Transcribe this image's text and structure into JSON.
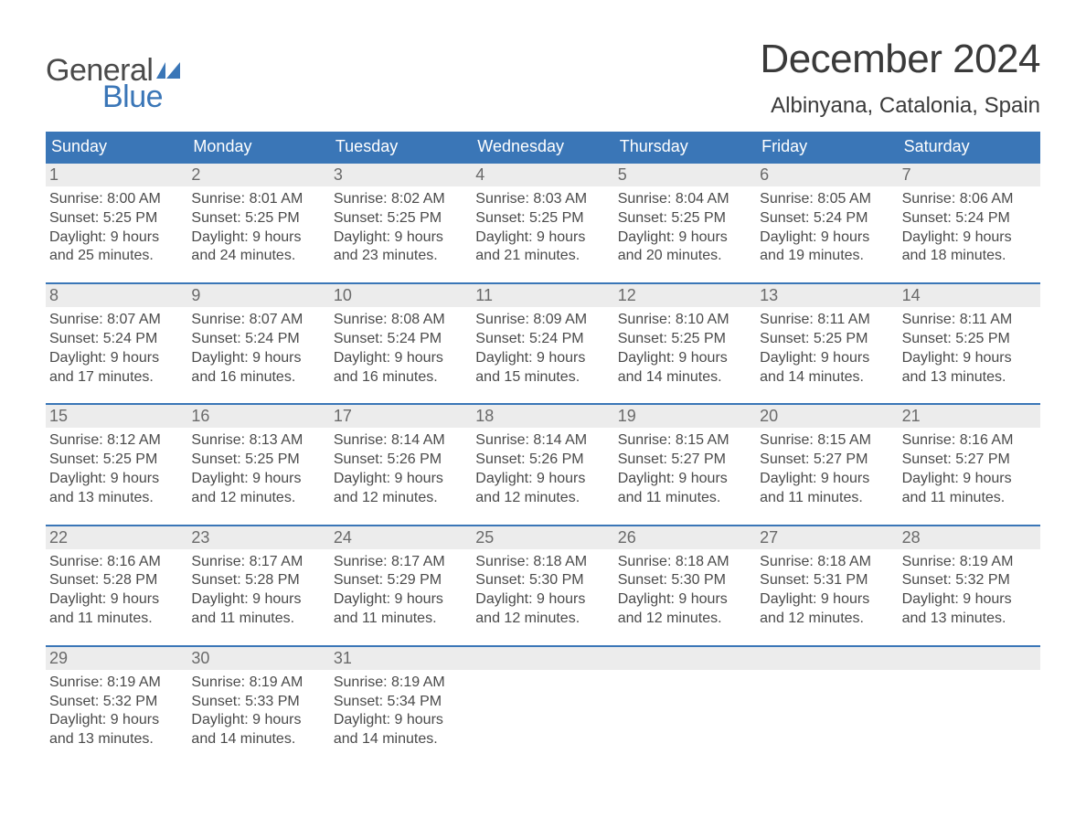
{
  "logo": {
    "text_general": "General",
    "text_blue": "Blue",
    "flag_color": "#3a76b7"
  },
  "title": "December 2024",
  "location": "Albinyana, Catalonia, Spain",
  "colors": {
    "header_bg": "#3a76b7",
    "header_text": "#ffffff",
    "daynum_bg": "#ececec",
    "daynum_text": "#6a6a6a",
    "body_text": "#4a4a4a",
    "week_border": "#3a76b7",
    "background": "#ffffff"
  },
  "typography": {
    "title_fontsize": 44,
    "location_fontsize": 24,
    "weekday_fontsize": 18,
    "daynum_fontsize": 18,
    "cell_fontsize": 16,
    "logo_fontsize": 34
  },
  "weekdays": [
    "Sunday",
    "Monday",
    "Tuesday",
    "Wednesday",
    "Thursday",
    "Friday",
    "Saturday"
  ],
  "weeks": [
    [
      {
        "n": "1",
        "sunrise": "8:00 AM",
        "sunset": "5:25 PM",
        "dl1": "Daylight: 9 hours",
        "dl2": "and 25 minutes."
      },
      {
        "n": "2",
        "sunrise": "8:01 AM",
        "sunset": "5:25 PM",
        "dl1": "Daylight: 9 hours",
        "dl2": "and 24 minutes."
      },
      {
        "n": "3",
        "sunrise": "8:02 AM",
        "sunset": "5:25 PM",
        "dl1": "Daylight: 9 hours",
        "dl2": "and 23 minutes."
      },
      {
        "n": "4",
        "sunrise": "8:03 AM",
        "sunset": "5:25 PM",
        "dl1": "Daylight: 9 hours",
        "dl2": "and 21 minutes."
      },
      {
        "n": "5",
        "sunrise": "8:04 AM",
        "sunset": "5:25 PM",
        "dl1": "Daylight: 9 hours",
        "dl2": "and 20 minutes."
      },
      {
        "n": "6",
        "sunrise": "8:05 AM",
        "sunset": "5:24 PM",
        "dl1": "Daylight: 9 hours",
        "dl2": "and 19 minutes."
      },
      {
        "n": "7",
        "sunrise": "8:06 AM",
        "sunset": "5:24 PM",
        "dl1": "Daylight: 9 hours",
        "dl2": "and 18 minutes."
      }
    ],
    [
      {
        "n": "8",
        "sunrise": "8:07 AM",
        "sunset": "5:24 PM",
        "dl1": "Daylight: 9 hours",
        "dl2": "and 17 minutes."
      },
      {
        "n": "9",
        "sunrise": "8:07 AM",
        "sunset": "5:24 PM",
        "dl1": "Daylight: 9 hours",
        "dl2": "and 16 minutes."
      },
      {
        "n": "10",
        "sunrise": "8:08 AM",
        "sunset": "5:24 PM",
        "dl1": "Daylight: 9 hours",
        "dl2": "and 16 minutes."
      },
      {
        "n": "11",
        "sunrise": "8:09 AM",
        "sunset": "5:24 PM",
        "dl1": "Daylight: 9 hours",
        "dl2": "and 15 minutes."
      },
      {
        "n": "12",
        "sunrise": "8:10 AM",
        "sunset": "5:25 PM",
        "dl1": "Daylight: 9 hours",
        "dl2": "and 14 minutes."
      },
      {
        "n": "13",
        "sunrise": "8:11 AM",
        "sunset": "5:25 PM",
        "dl1": "Daylight: 9 hours",
        "dl2": "and 14 minutes."
      },
      {
        "n": "14",
        "sunrise": "8:11 AM",
        "sunset": "5:25 PM",
        "dl1": "Daylight: 9 hours",
        "dl2": "and 13 minutes."
      }
    ],
    [
      {
        "n": "15",
        "sunrise": "8:12 AM",
        "sunset": "5:25 PM",
        "dl1": "Daylight: 9 hours",
        "dl2": "and 13 minutes."
      },
      {
        "n": "16",
        "sunrise": "8:13 AM",
        "sunset": "5:25 PM",
        "dl1": "Daylight: 9 hours",
        "dl2": "and 12 minutes."
      },
      {
        "n": "17",
        "sunrise": "8:14 AM",
        "sunset": "5:26 PM",
        "dl1": "Daylight: 9 hours",
        "dl2": "and 12 minutes."
      },
      {
        "n": "18",
        "sunrise": "8:14 AM",
        "sunset": "5:26 PM",
        "dl1": "Daylight: 9 hours",
        "dl2": "and 12 minutes."
      },
      {
        "n": "19",
        "sunrise": "8:15 AM",
        "sunset": "5:27 PM",
        "dl1": "Daylight: 9 hours",
        "dl2": "and 11 minutes."
      },
      {
        "n": "20",
        "sunrise": "8:15 AM",
        "sunset": "5:27 PM",
        "dl1": "Daylight: 9 hours",
        "dl2": "and 11 minutes."
      },
      {
        "n": "21",
        "sunrise": "8:16 AM",
        "sunset": "5:27 PM",
        "dl1": "Daylight: 9 hours",
        "dl2": "and 11 minutes."
      }
    ],
    [
      {
        "n": "22",
        "sunrise": "8:16 AM",
        "sunset": "5:28 PM",
        "dl1": "Daylight: 9 hours",
        "dl2": "and 11 minutes."
      },
      {
        "n": "23",
        "sunrise": "8:17 AM",
        "sunset": "5:28 PM",
        "dl1": "Daylight: 9 hours",
        "dl2": "and 11 minutes."
      },
      {
        "n": "24",
        "sunrise": "8:17 AM",
        "sunset": "5:29 PM",
        "dl1": "Daylight: 9 hours",
        "dl2": "and 11 minutes."
      },
      {
        "n": "25",
        "sunrise": "8:18 AM",
        "sunset": "5:30 PM",
        "dl1": "Daylight: 9 hours",
        "dl2": "and 12 minutes."
      },
      {
        "n": "26",
        "sunrise": "8:18 AM",
        "sunset": "5:30 PM",
        "dl1": "Daylight: 9 hours",
        "dl2": "and 12 minutes."
      },
      {
        "n": "27",
        "sunrise": "8:18 AM",
        "sunset": "5:31 PM",
        "dl1": "Daylight: 9 hours",
        "dl2": "and 12 minutes."
      },
      {
        "n": "28",
        "sunrise": "8:19 AM",
        "sunset": "5:32 PM",
        "dl1": "Daylight: 9 hours",
        "dl2": "and 13 minutes."
      }
    ],
    [
      {
        "n": "29",
        "sunrise": "8:19 AM",
        "sunset": "5:32 PM",
        "dl1": "Daylight: 9 hours",
        "dl2": "and 13 minutes."
      },
      {
        "n": "30",
        "sunrise": "8:19 AM",
        "sunset": "5:33 PM",
        "dl1": "Daylight: 9 hours",
        "dl2": "and 14 minutes."
      },
      {
        "n": "31",
        "sunrise": "8:19 AM",
        "sunset": "5:34 PM",
        "dl1": "Daylight: 9 hours",
        "dl2": "and 14 minutes."
      },
      null,
      null,
      null,
      null
    ]
  ],
  "labels": {
    "sunrise_prefix": "Sunrise: ",
    "sunset_prefix": "Sunset: "
  }
}
